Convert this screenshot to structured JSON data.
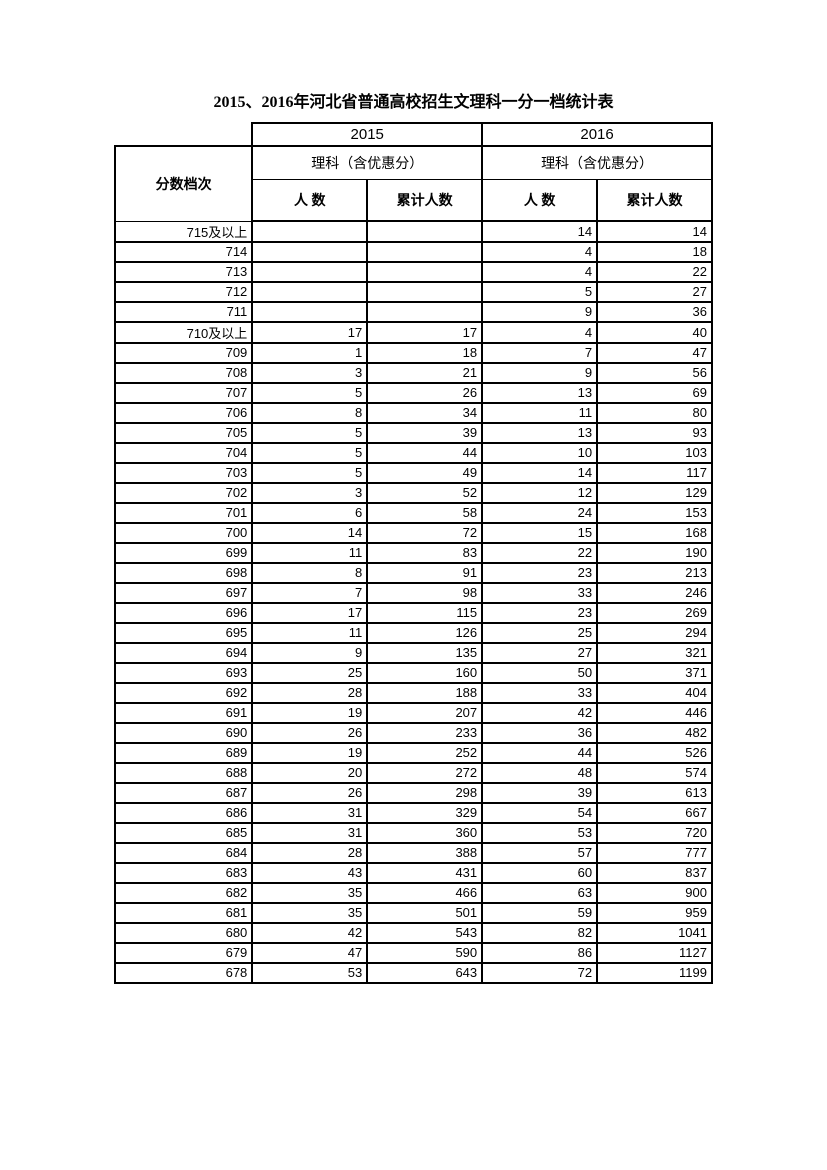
{
  "title": "2015、2016年河北省普通高校招生文理科一分一档统计表",
  "table": {
    "type": "table",
    "score_label": "分数档次",
    "year_a": "2015",
    "year_b": "2016",
    "subject_a": "理科（含优惠分）",
    "subject_b": "理科（含优惠分）",
    "col_count": "人 数",
    "col_cum": "累计人数",
    "background_color": "#ffffff",
    "border_color": "#000000",
    "title_fontsize": 16,
    "header_fontsize": 14,
    "data_fontsize": 13,
    "rows": [
      {
        "score": "715及以上",
        "a_count": "",
        "a_cum": "",
        "b_count": "14",
        "b_cum": "14"
      },
      {
        "score": "714",
        "a_count": "",
        "a_cum": "",
        "b_count": "4",
        "b_cum": "18"
      },
      {
        "score": "713",
        "a_count": "",
        "a_cum": "",
        "b_count": "4",
        "b_cum": "22"
      },
      {
        "score": "712",
        "a_count": "",
        "a_cum": "",
        "b_count": "5",
        "b_cum": "27"
      },
      {
        "score": "711",
        "a_count": "",
        "a_cum": "",
        "b_count": "9",
        "b_cum": "36"
      },
      {
        "score": "710及以上",
        "a_count": "17",
        "a_cum": "17",
        "b_count": "4",
        "b_cum": "40"
      },
      {
        "score": "709",
        "a_count": "1",
        "a_cum": "18",
        "b_count": "7",
        "b_cum": "47"
      },
      {
        "score": "708",
        "a_count": "3",
        "a_cum": "21",
        "b_count": "9",
        "b_cum": "56"
      },
      {
        "score": "707",
        "a_count": "5",
        "a_cum": "26",
        "b_count": "13",
        "b_cum": "69"
      },
      {
        "score": "706",
        "a_count": "8",
        "a_cum": "34",
        "b_count": "11",
        "b_cum": "80"
      },
      {
        "score": "705",
        "a_count": "5",
        "a_cum": "39",
        "b_count": "13",
        "b_cum": "93"
      },
      {
        "score": "704",
        "a_count": "5",
        "a_cum": "44",
        "b_count": "10",
        "b_cum": "103"
      },
      {
        "score": "703",
        "a_count": "5",
        "a_cum": "49",
        "b_count": "14",
        "b_cum": "117"
      },
      {
        "score": "702",
        "a_count": "3",
        "a_cum": "52",
        "b_count": "12",
        "b_cum": "129"
      },
      {
        "score": "701",
        "a_count": "6",
        "a_cum": "58",
        "b_count": "24",
        "b_cum": "153"
      },
      {
        "score": "700",
        "a_count": "14",
        "a_cum": "72",
        "b_count": "15",
        "b_cum": "168"
      },
      {
        "score": "699",
        "a_count": "11",
        "a_cum": "83",
        "b_count": "22",
        "b_cum": "190"
      },
      {
        "score": "698",
        "a_count": "8",
        "a_cum": "91",
        "b_count": "23",
        "b_cum": "213"
      },
      {
        "score": "697",
        "a_count": "7",
        "a_cum": "98",
        "b_count": "33",
        "b_cum": "246"
      },
      {
        "score": "696",
        "a_count": "17",
        "a_cum": "115",
        "b_count": "23",
        "b_cum": "269"
      },
      {
        "score": "695",
        "a_count": "11",
        "a_cum": "126",
        "b_count": "25",
        "b_cum": "294"
      },
      {
        "score": "694",
        "a_count": "9",
        "a_cum": "135",
        "b_count": "27",
        "b_cum": "321"
      },
      {
        "score": "693",
        "a_count": "25",
        "a_cum": "160",
        "b_count": "50",
        "b_cum": "371"
      },
      {
        "score": "692",
        "a_count": "28",
        "a_cum": "188",
        "b_count": "33",
        "b_cum": "404"
      },
      {
        "score": "691",
        "a_count": "19",
        "a_cum": "207",
        "b_count": "42",
        "b_cum": "446"
      },
      {
        "score": "690",
        "a_count": "26",
        "a_cum": "233",
        "b_count": "36",
        "b_cum": "482"
      },
      {
        "score": "689",
        "a_count": "19",
        "a_cum": "252",
        "b_count": "44",
        "b_cum": "526"
      },
      {
        "score": "688",
        "a_count": "20",
        "a_cum": "272",
        "b_count": "48",
        "b_cum": "574"
      },
      {
        "score": "687",
        "a_count": "26",
        "a_cum": "298",
        "b_count": "39",
        "b_cum": "613"
      },
      {
        "score": "686",
        "a_count": "31",
        "a_cum": "329",
        "b_count": "54",
        "b_cum": "667"
      },
      {
        "score": "685",
        "a_count": "31",
        "a_cum": "360",
        "b_count": "53",
        "b_cum": "720"
      },
      {
        "score": "684",
        "a_count": "28",
        "a_cum": "388",
        "b_count": "57",
        "b_cum": "777"
      },
      {
        "score": "683",
        "a_count": "43",
        "a_cum": "431",
        "b_count": "60",
        "b_cum": "837"
      },
      {
        "score": "682",
        "a_count": "35",
        "a_cum": "466",
        "b_count": "63",
        "b_cum": "900"
      },
      {
        "score": "681",
        "a_count": "35",
        "a_cum": "501",
        "b_count": "59",
        "b_cum": "959"
      },
      {
        "score": "680",
        "a_count": "42",
        "a_cum": "543",
        "b_count": "82",
        "b_cum": "1041"
      },
      {
        "score": "679",
        "a_count": "47",
        "a_cum": "590",
        "b_count": "86",
        "b_cum": "1127"
      },
      {
        "score": "678",
        "a_count": "53",
        "a_cum": "643",
        "b_count": "72",
        "b_cum": "1199"
      }
    ]
  }
}
